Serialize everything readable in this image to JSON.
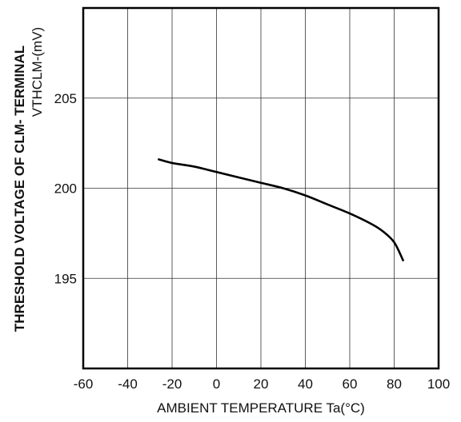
{
  "chart_data": {
    "type": "line",
    "title": "",
    "xlabel": "AMBIENT TEMPERATURE Ta(°C)",
    "ylabel_line1": "THRESHOLD VOLTAGE OF CLM- TERMINAL",
    "ylabel_line2": "VTHCLM-(mV)",
    "xlim": [
      -60,
      100
    ],
    "ylim": [
      190,
      210
    ],
    "x_ticks": [
      -60,
      -40,
      -20,
      0,
      20,
      40,
      60,
      80,
      100
    ],
    "x_tick_labels": [
      "-60",
      "-40",
      "-20",
      "0",
      "20",
      "40",
      "60",
      "80",
      "100"
    ],
    "y_ticks": [
      195,
      200,
      205
    ],
    "y_tick_labels": [
      "195",
      "200",
      "205"
    ],
    "grid": true,
    "series": [
      {
        "x": [
          -26,
          -20,
          -10,
          0,
          10,
          20,
          30,
          40,
          50,
          60,
          70,
          75,
          80,
          84
        ],
        "y": [
          201.6,
          201.4,
          201.2,
          200.9,
          200.6,
          200.3,
          200.0,
          199.6,
          199.1,
          198.6,
          198.0,
          197.6,
          197.0,
          196.0
        ]
      }
    ]
  }
}
